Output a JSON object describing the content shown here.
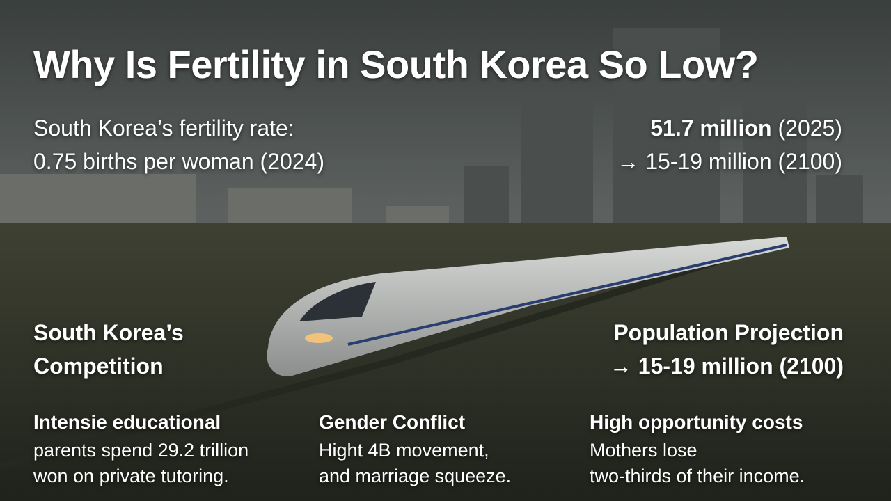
{
  "title": "Why Is Fertility in South Korea So Low?",
  "left_stat": {
    "lines": [
      "South Korea’s fertility rate:",
      "0.75 births per woman (2024)"
    ]
  },
  "right_stat": {
    "population": "51.7 million",
    "year": "(2025)",
    "projection": "→ 15-19 million (2100)"
  },
  "left_heading": {
    "lines": [
      "South Korea’s",
      "Competition"
    ]
  },
  "right_heading": {
    "lines": [
      "Population Projection",
      "→ 15-19 million (2100)"
    ]
  },
  "columns": [
    {
      "heading": "Intensie educational",
      "lines": [
        "parents spend 29.2 trillion",
        "won on private tutoring."
      ]
    },
    {
      "heading": "Gender Conflict",
      "lines": [
        "Hight 4B movement,",
        "and marriage squeeze."
      ]
    },
    {
      "heading": "High opportunity costs",
      "lines": [
        "Mothers lose",
        "two-thirds of their income."
      ]
    }
  ]
}
